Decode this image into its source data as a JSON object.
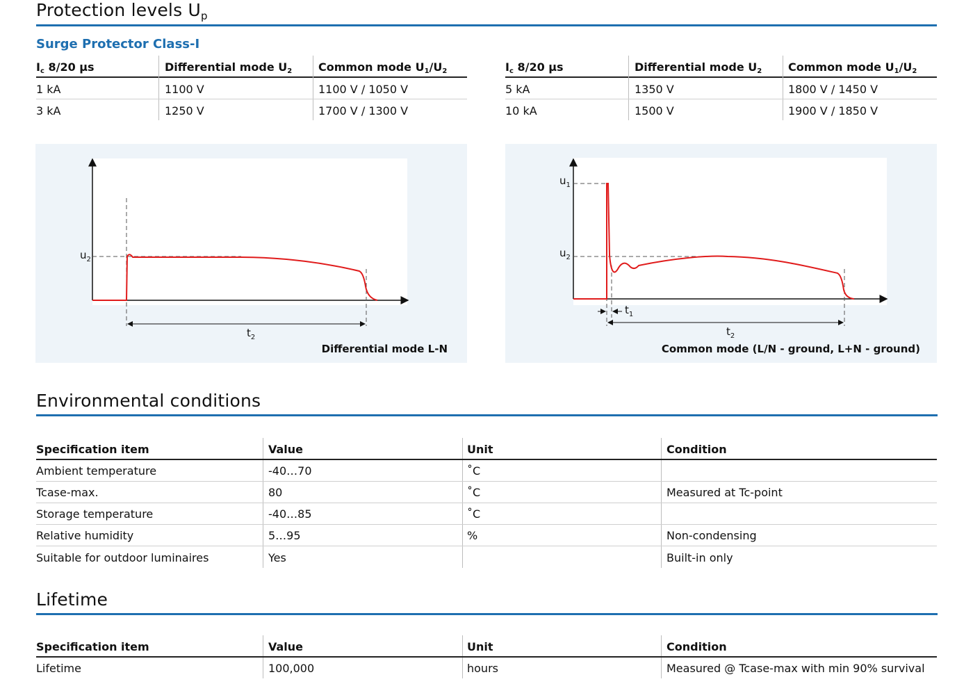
{
  "protection": {
    "title": "Protection levels U",
    "title_sub": "p",
    "subtitle": "Surge Protector Class-I",
    "headers": {
      "ic": "I",
      "ic_sub": "c",
      "ic_rest": " 8/20 µs",
      "diff": "Differential mode U",
      "diff_sub": "2",
      "common": "Common mode U",
      "common_sub1": "1",
      "common_mid": "/U",
      "common_sub2": "2"
    },
    "left_rows": [
      {
        "ic": "1 kA",
        "diff": "1100 V",
        "common": "1100 V / 1050 V"
      },
      {
        "ic": "3 kA",
        "diff": "1250 V",
        "common": "1700 V / 1300 V"
      }
    ],
    "right_rows": [
      {
        "ic": "5 kA",
        "diff": "1350 V",
        "common": "1800 V / 1450 V"
      },
      {
        "ic": "10 kA",
        "diff": "1500 V",
        "common": "1900 V / 1850 V"
      }
    ]
  },
  "diagrams": {
    "left": {
      "caption": "Differential mode L-N",
      "u2": "u",
      "u2_sub": "2",
      "t2": "t",
      "t2_sub": "2"
    },
    "right": {
      "caption": "Common mode (L/N - ground, L+N - ground)",
      "u1": "u",
      "u1_sub": "1",
      "u2": "u",
      "u2_sub": "2",
      "t1": "t",
      "t1_sub": "1",
      "t2": "t",
      "t2_sub": "2"
    },
    "colors": {
      "signal": "#e01b1b",
      "axis": "#111111",
      "panel": "#eef4f9"
    }
  },
  "environment": {
    "title": "Environmental conditions",
    "headers": {
      "item": "Specification item",
      "value": "Value",
      "unit": "Unit",
      "condition": "Condition"
    },
    "rows": [
      {
        "item": "Ambient temperature",
        "value": "-40…70",
        "unit": "˚C",
        "condition": ""
      },
      {
        "item": "Tcase-max.",
        "value": "80",
        "unit": "˚C",
        "condition": "Measured at Tc-point"
      },
      {
        "item": "Storage temperature",
        "value": "-40…85",
        "unit": "˚C",
        "condition": ""
      },
      {
        "item": "Relative humidity",
        "value": "5…95",
        "unit": "%",
        "condition": "Non-condensing"
      },
      {
        "item": "Suitable for outdoor luminaires",
        "value": "Yes",
        "unit": "",
        "condition": "Built-in only"
      }
    ]
  },
  "lifetime": {
    "title": "Lifetime",
    "headers": {
      "item": "Specification item",
      "value": "Value",
      "unit": "Unit",
      "condition": "Condition"
    },
    "rows": [
      {
        "item": "Lifetime",
        "value": "100,000",
        "unit": "hours",
        "condition": "Measured @ Tcase-max with min 90% survival"
      }
    ]
  },
  "accent_color": "#1e6fb0"
}
